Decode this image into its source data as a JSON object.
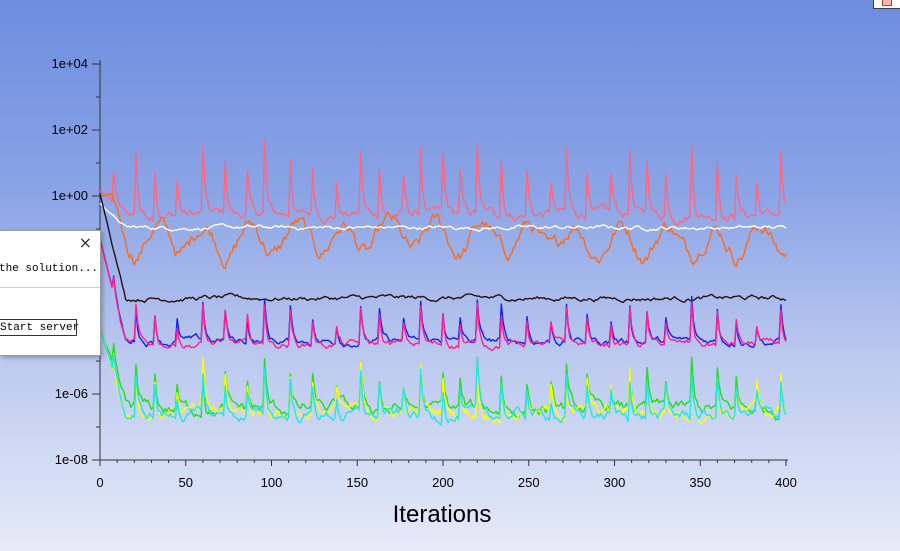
{
  "chart_data": {
    "type": "line",
    "title": "",
    "xlabel": "Iterations",
    "ylabel": "",
    "yscale": "log",
    "xlim": [
      0,
      400
    ],
    "ylim": [
      1e-08,
      10000.0
    ],
    "x_ticks": [
      {
        "value": 0,
        "label": "0"
      },
      {
        "value": 50,
        "label": "50"
      },
      {
        "value": 100,
        "label": "100"
      },
      {
        "value": 150,
        "label": "150"
      },
      {
        "value": 200,
        "label": "200"
      },
      {
        "value": 250,
        "label": "250"
      },
      {
        "value": 300,
        "label": "300"
      },
      {
        "value": 350,
        "label": "350"
      },
      {
        "value": 400,
        "label": "400"
      }
    ],
    "y_ticks": [
      {
        "value": 10000.0,
        "label": "1e+04"
      },
      {
        "value": 100.0,
        "label": "1e+02"
      },
      {
        "value": 1.0,
        "label": "1e+00"
      },
      {
        "value": 1e-06,
        "label": "1e-06"
      },
      {
        "value": 1e-08,
        "label": "1e-08"
      }
    ],
    "series": [
      {
        "name": "residual-pink",
        "color": "#ff6680",
        "base": 0.28,
        "noise": 0.22,
        "start": 1.5,
        "decay": 0,
        "spikes": true,
        "spike_scale": 1.6
      },
      {
        "name": "residual-orange",
        "color": "#ff6a1a",
        "base": 0.05,
        "noise": 0.35,
        "start": 1.0,
        "decay": 0.004,
        "spikes": false,
        "wave": true
      },
      {
        "name": "residual-white",
        "color": "#ffffff",
        "base": 0.11,
        "noise": 0.08,
        "start": 0.6,
        "decay": 0.002,
        "spikes": false
      },
      {
        "name": "residual-black",
        "color": "#2a1010",
        "base": 0.0008,
        "noise": 0.1,
        "start": 1.2,
        "decay": 0.006,
        "spikes": false
      },
      {
        "name": "residual-blue",
        "color": "#1020ff",
        "base": 4e-05,
        "noise": 0.15,
        "start": 0.05,
        "decay": 0.004,
        "spikes": true,
        "spike_scale": 0.9
      },
      {
        "name": "residual-magenta",
        "color": "#ff1f8f",
        "base": 3.2e-05,
        "noise": 0.15,
        "start": 0.05,
        "decay": 0.004,
        "spikes": true,
        "spike_scale": 0.9
      },
      {
        "name": "residual-green",
        "color": "#22dd22",
        "base": 3.5e-07,
        "noise": 0.28,
        "start": 0.0001,
        "decay": 0.004,
        "spikes": true,
        "spike_scale": 1.0
      },
      {
        "name": "residual-yellow",
        "color": "#ffff00",
        "base": 2.8e-07,
        "noise": 0.28,
        "start": 0.0001,
        "decay": 0.004,
        "spikes": true,
        "spike_scale": 1.0
      },
      {
        "name": "residual-cyan",
        "color": "#22e6e6",
        "base": 2.2e-07,
        "noise": 0.25,
        "start": 0.0001,
        "decay": 0.004,
        "spikes": true,
        "spike_scale": 1.0
      }
    ]
  },
  "dialog": {
    "close_glyph": "×",
    "message": "the solution...",
    "button_label": "Start server"
  }
}
